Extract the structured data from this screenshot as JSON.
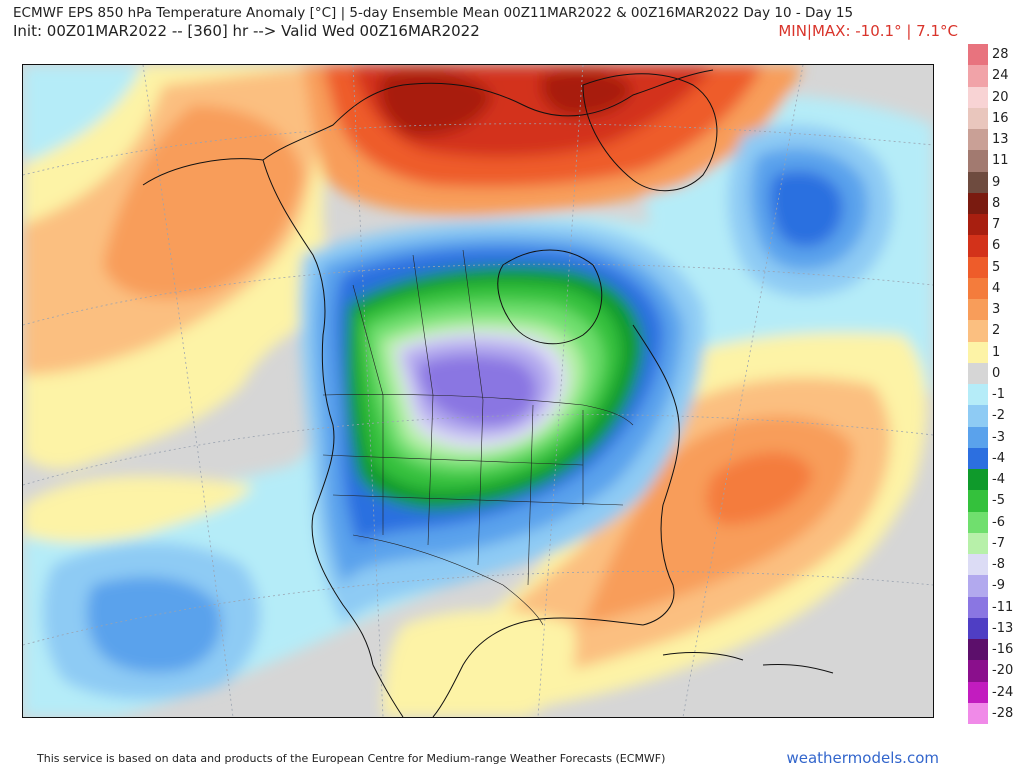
{
  "header": {
    "title_line1": "ECMWF EPS 850 hPa Temperature Anomaly [°C] | 5-day Ensemble Mean 00Z11MAR2022 & 00Z16MAR2022  Day 10 - Day 15",
    "title_line2": "Init: 00Z01MAR2022 -- [360] hr --> Valid Wed 00Z16MAR2022",
    "minmax": "MIN|MAX: -10.1° | 7.1°C"
  },
  "footer": {
    "credit": "This service is based on data and products of the European Centre for Medium-range Weather Forecasts (ECMWF)",
    "site": "weathermodels.com"
  },
  "legend": {
    "items": [
      {
        "label": "28",
        "color": "#e8737e"
      },
      {
        "label": "24",
        "color": "#f1a3a8"
      },
      {
        "label": "20",
        "color": "#f8d3d4"
      },
      {
        "label": "16",
        "color": "#e9c6bd"
      },
      {
        "label": "13",
        "color": "#c9a096"
      },
      {
        "label": "11",
        "color": "#a27a70"
      },
      {
        "label": "9",
        "color": "#6e4b3f"
      },
      {
        "label": "8",
        "color": "#7a1b10"
      },
      {
        "label": "7",
        "color": "#a81f10"
      },
      {
        "label": "6",
        "color": "#d3321a"
      },
      {
        "label": "5",
        "color": "#ee5c2a"
      },
      {
        "label": "4",
        "color": "#f47c3c"
      },
      {
        "label": "3",
        "color": "#f89d5a"
      },
      {
        "label": "2",
        "color": "#fbbf80"
      },
      {
        "label": "1",
        "color": "#fdf3a6"
      },
      {
        "label": "0",
        "color": "#d6d6d6"
      },
      {
        "label": "-1",
        "color": "#b5ecf8"
      },
      {
        "label": "-2",
        "color": "#8ecbf4"
      },
      {
        "label": "-3",
        "color": "#5aa2ec"
      },
      {
        "label": "-4",
        "color": "#2c6fe0"
      },
      {
        "label": "-4",
        "color": "#0f9a2b"
      },
      {
        "label": "-5",
        "color": "#34c13c"
      },
      {
        "label": "-6",
        "color": "#70df6e"
      },
      {
        "label": "-7",
        "color": "#b7f0a9"
      },
      {
        "label": "-8",
        "color": "#dcdcf5"
      },
      {
        "label": "-9",
        "color": "#b2a9ee"
      },
      {
        "label": "-11",
        "color": "#8a76e2"
      },
      {
        "label": "-13",
        "color": "#4f3ec4"
      },
      {
        "label": "-16",
        "color": "#5c0f6b"
      },
      {
        "label": "-20",
        "color": "#8a0f8c"
      },
      {
        "label": "-24",
        "color": "#c21cbf"
      },
      {
        "label": "-28",
        "color": "#f08ae8"
      }
    ]
  },
  "colors": {
    "border": "#1a1a1a",
    "minmax_text": "#d9342b",
    "site_link": "#3366cc"
  }
}
